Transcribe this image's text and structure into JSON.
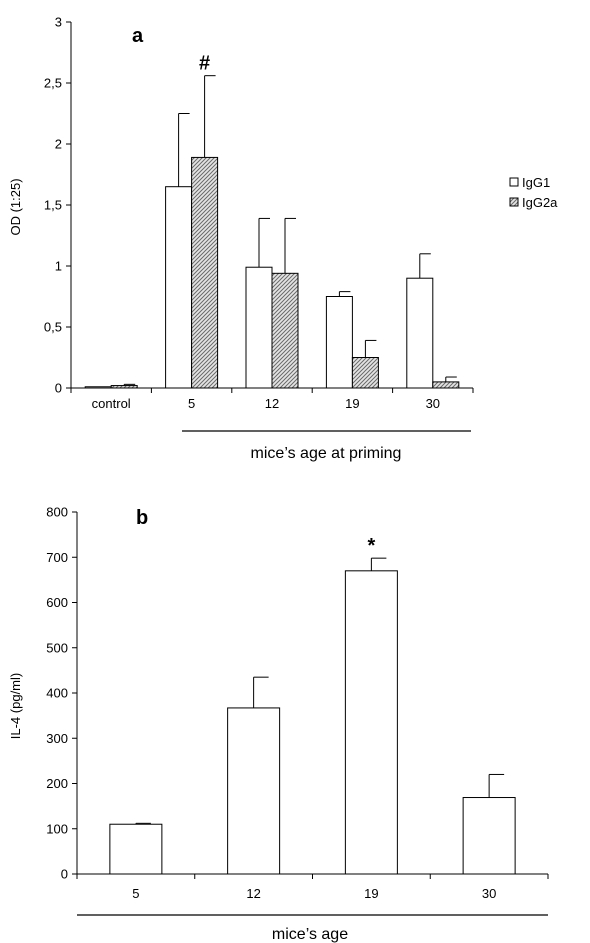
{
  "chart_data": [
    {
      "type": "bar",
      "panel_label": "a",
      "categories": [
        "control",
        "5",
        "12",
        "19",
        "30"
      ],
      "xlabel": "mice’s age at priming",
      "ylabel": "OD (1:25)",
      "ylim": [
        0,
        3
      ],
      "yticks": [
        "0",
        "0,5",
        "1",
        "1,5",
        "2",
        "2,5",
        "3"
      ],
      "series": [
        {
          "name": "IgG1",
          "values": [
            0.01,
            1.65,
            0.99,
            0.75,
            0.9
          ],
          "errors": [
            0.0,
            0.6,
            0.4,
            0.04,
            0.2
          ]
        },
        {
          "name": "IgG2a",
          "values": [
            0.02,
            1.89,
            0.94,
            0.25,
            0.05
          ],
          "errors": [
            0.01,
            0.67,
            0.45,
            0.14,
            0.04
          ]
        }
      ],
      "annotations": [
        {
          "text": "#",
          "category": "5",
          "series": "IgG2a"
        }
      ],
      "legend": "right",
      "grid": false
    },
    {
      "type": "bar",
      "panel_label": "b",
      "categories": [
        "5",
        "12",
        "19",
        "30"
      ],
      "xlabel": "mice’s age",
      "ylabel": "IL-4 (pg/ml)",
      "ylim": [
        0,
        800
      ],
      "yticks": [
        "0",
        "100",
        "200",
        "300",
        "400",
        "500",
        "600",
        "700",
        "800"
      ],
      "series": [
        {
          "values": [
            110,
            367,
            670,
            169
          ],
          "errors": [
            2,
            68,
            28,
            51
          ]
        }
      ],
      "annotations": [
        {
          "text": "*",
          "category": "19"
        }
      ],
      "grid": false
    }
  ],
  "colors": {
    "bar_stroke": "#000000",
    "igg1_fill": "#ffffff",
    "igg2a_fill": "#bdbdbd"
  }
}
